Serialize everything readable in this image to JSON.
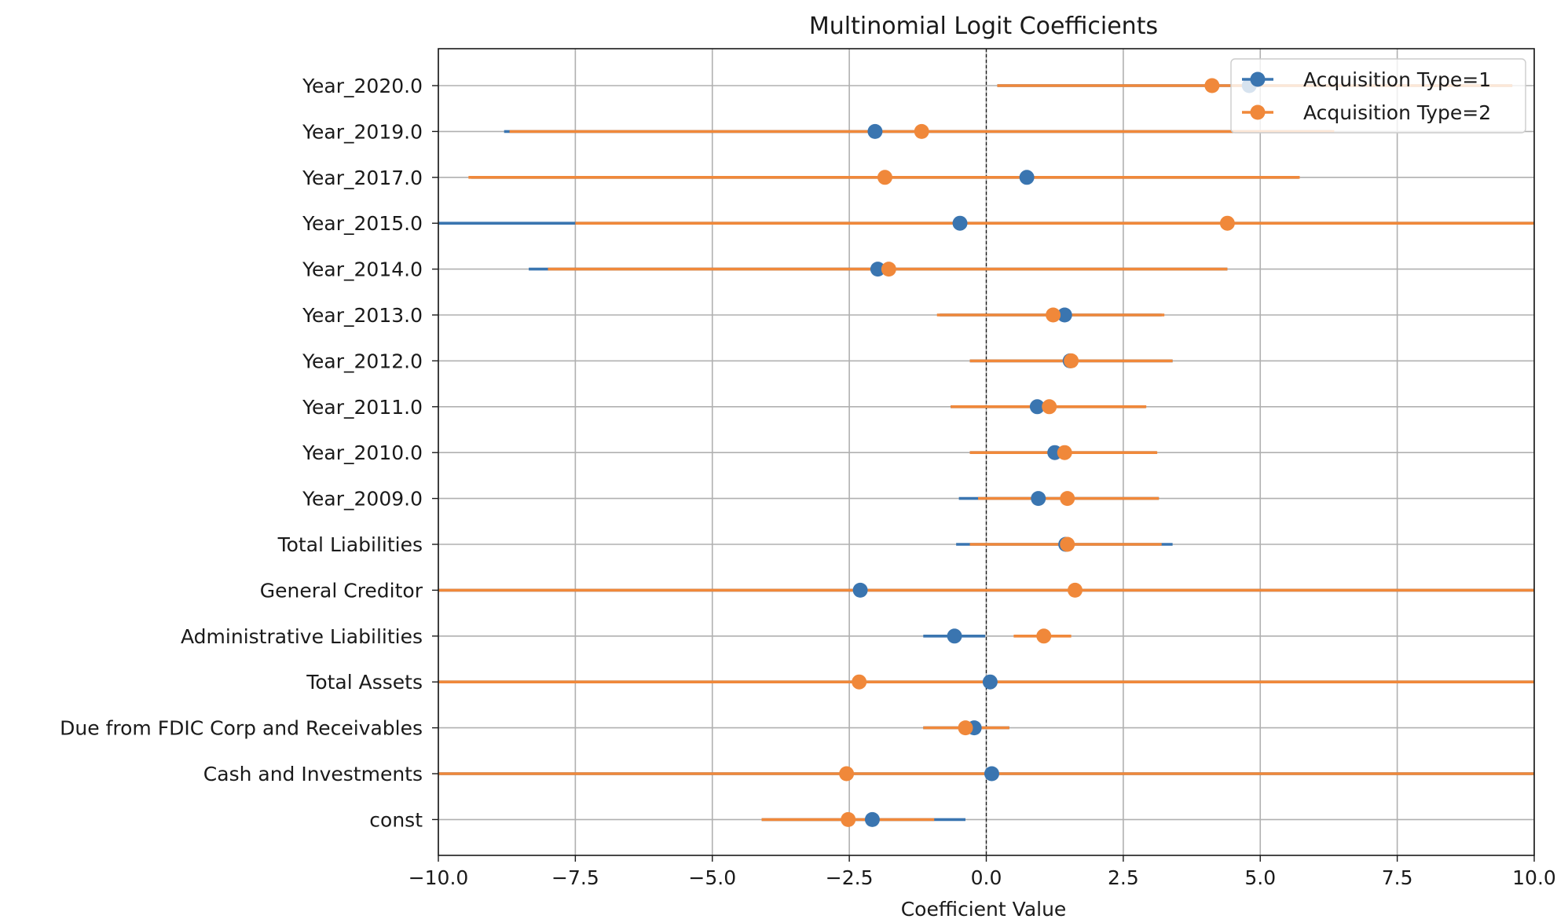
{
  "chart_data": {
    "type": "scatter",
    "title": "Multinomial Logit Coefficients",
    "xlabel": "Coefficient Value",
    "ylabel": "",
    "xlim": [
      -10,
      10
    ],
    "x_ticks": [
      "−10.0",
      "−7.5",
      "−5.0",
      "−2.5",
      "0.0",
      "2.5",
      "5.0",
      "7.5",
      "10.0"
    ],
    "x_tick_values": [
      -10,
      -7.5,
      -5,
      -2.5,
      0,
      2.5,
      5,
      7.5,
      10
    ],
    "grid": true,
    "zero_reference_line": true,
    "legend_position": "top-right",
    "categories": [
      "Year_2020.0",
      "Year_2019.0",
      "Year_2017.0",
      "Year_2015.0",
      "Year_2014.0",
      "Year_2013.0",
      "Year_2012.0",
      "Year_2011.0",
      "Year_2010.0",
      "Year_2009.0",
      "Total Liabilities",
      "General Creditor",
      "Administrative Liabilities",
      "Total Assets",
      "Due from FDIC Corp and Receivables",
      "Cash and Investments",
      "const"
    ],
    "series": [
      {
        "name": "Acquisition Type=1",
        "color": "#3a75b0",
        "values": [
          4.8,
          -2.03,
          0.74,
          -0.48,
          -1.98,
          1.43,
          1.53,
          0.93,
          1.25,
          0.95,
          1.45,
          -2.3,
          -0.58,
          0.07,
          -0.22,
          0.1,
          -2.08
        ],
        "ci_low": [
          0.2,
          -8.8,
          -9.4,
          -10,
          -8.35,
          -0.85,
          -0.3,
          -0.65,
          -0.3,
          -0.5,
          -0.55,
          -10,
          -1.15,
          -10,
          -1.15,
          -10,
          -4.1
        ],
        "ci_high": [
          9.6,
          6.3,
          5.7,
          10,
          4.4,
          3.2,
          3.4,
          2.9,
          3.1,
          3.15,
          3.4,
          10,
          -0.02,
          10,
          0.42,
          10,
          -0.38
        ]
      },
      {
        "name": "Acquisition Type=2",
        "color": "#f0883a",
        "values": [
          4.12,
          -1.18,
          -1.85,
          4.4,
          -1.78,
          1.22,
          1.55,
          1.15,
          1.43,
          1.48,
          1.48,
          1.62,
          1.05,
          -2.32,
          -0.38,
          -2.55,
          -2.52
        ],
        "ci_low": [
          0.2,
          -8.7,
          -9.45,
          -7.5,
          -8.0,
          -0.9,
          -0.3,
          -0.65,
          -0.3,
          -0.15,
          -0.3,
          -10,
          0.5,
          -10,
          -1.15,
          -10,
          -4.1
        ],
        "ci_high": [
          9.6,
          6.35,
          5.72,
          10,
          4.4,
          3.25,
          3.4,
          2.92,
          3.12,
          3.15,
          3.2,
          10,
          1.55,
          10,
          0.42,
          10,
          -0.95
        ]
      }
    ]
  }
}
